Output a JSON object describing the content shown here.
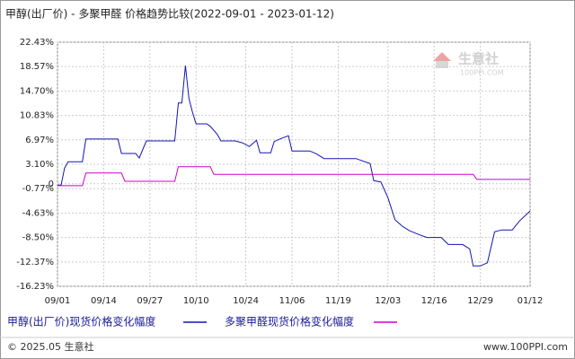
{
  "chart_data": {
    "type": "line",
    "title": "甲醇(出厂价) - 多聚甲醛 价格趋势比较(2022-09-01 - 2023-01-12)",
    "watermark": "生意社",
    "watermark_url": "100PPI.COM",
    "footer_left": "© 2025.05 生意社",
    "footer_right": "www.100PPI.com",
    "xlim": [
      "2022-09-01",
      "2023-01-12"
    ],
    "xticks": [
      {
        "value": "2022-09-01",
        "label": "09/01"
      },
      {
        "value": "2022-09-14",
        "label": "09/14"
      },
      {
        "value": "2022-09-27",
        "label": "09/27"
      },
      {
        "value": "2022-10-10",
        "label": "10/10"
      },
      {
        "value": "2022-10-24",
        "label": "10/24"
      },
      {
        "value": "2022-11-06",
        "label": "11/06"
      },
      {
        "value": "2022-11-19",
        "label": "11/19"
      },
      {
        "value": "2022-12-03",
        "label": "12/03"
      },
      {
        "value": "2022-12-16",
        "label": "12/16"
      },
      {
        "value": "2022-12-29",
        "label": "12/29"
      },
      {
        "value": "2023-01-12",
        "label": "01/12"
      }
    ],
    "ylim": [
      -16.23,
      22.43
    ],
    "yticks": [
      {
        "value": 22.43,
        "label": "22.43%"
      },
      {
        "value": 18.57,
        "label": "18.57%"
      },
      {
        "value": 14.7,
        "label": "14.70%"
      },
      {
        "value": 10.83,
        "label": "10.83%"
      },
      {
        "value": 6.97,
        "label": "6.97%"
      },
      {
        "value": 3.1,
        "label": "3.10%"
      },
      0,
      {
        "value": -0.77,
        "label": "-0.77%"
      },
      {
        "value": -4.63,
        "label": "-4.63%"
      },
      {
        "value": -8.5,
        "label": "-8.50%"
      },
      {
        "value": -12.37,
        "label": "-12.37%"
      },
      {
        "value": -16.23,
        "label": "-16.23%"
      }
    ],
    "grid": true,
    "series": [
      {
        "name": "甲醇(出厂价)现货价格变化幅度",
        "color": "#1414b4",
        "x": [
          "2022-09-01",
          "2022-09-02",
          "2022-09-03",
          "2022-09-04",
          "2022-09-08",
          "2022-09-09",
          "2022-09-18",
          "2022-09-19",
          "2022-09-23",
          "2022-09-24",
          "2022-09-26",
          "2022-10-04",
          "2022-10-05",
          "2022-10-06",
          "2022-10-07",
          "2022-10-08",
          "2022-10-09",
          "2022-10-10",
          "2022-10-13",
          "2022-10-14",
          "2022-10-16",
          "2022-10-17",
          "2022-10-21",
          "2022-10-23",
          "2022-10-25",
          "2022-10-27",
          "2022-10-28",
          "2022-10-31",
          "2022-11-01",
          "2022-11-03",
          "2022-11-05",
          "2022-11-06",
          "2022-11-11",
          "2022-11-13",
          "2022-11-15",
          "2022-11-24",
          "2022-11-28",
          "2022-11-29",
          "2022-12-01",
          "2022-12-03",
          "2022-12-05",
          "2022-12-07",
          "2022-12-09",
          "2022-12-12",
          "2022-12-14",
          "2022-12-18",
          "2022-12-20",
          "2022-12-24",
          "2022-12-26",
          "2022-12-27",
          "2022-12-29",
          "2022-12-31",
          "2023-01-02",
          "2023-01-04",
          "2023-01-07",
          "2023-01-09",
          "2023-01-12"
        ],
        "values": [
          -0.2,
          -0.2,
          2.5,
          3.5,
          3.5,
          7.1,
          7.1,
          4.8,
          4.8,
          4.1,
          6.8,
          6.8,
          12.8,
          12.8,
          18.7,
          13.5,
          11.3,
          9.5,
          9.5,
          9.1,
          7.8,
          6.8,
          6.8,
          6.5,
          5.9,
          6.9,
          4.9,
          4.9,
          6.7,
          7.2,
          7.6,
          5.2,
          5.2,
          4.7,
          4.0,
          4.0,
          3.2,
          0.5,
          0.3,
          -2.2,
          -5.7,
          -6.7,
          -7.4,
          -8.1,
          -8.5,
          -8.5,
          -9.6,
          -9.6,
          -10.3,
          -13.0,
          -13.0,
          -12.5,
          -7.6,
          -7.3,
          -7.3,
          -5.9,
          -4.3
        ]
      },
      {
        "name": "多聚甲醛现货价格变化幅度",
        "color": "#cc00cc",
        "x": [
          "2022-09-01",
          "2022-09-08",
          "2022-09-09",
          "2022-09-19",
          "2022-09-20",
          "2022-10-04",
          "2022-10-05",
          "2022-10-14",
          "2022-10-15",
          "2022-12-27",
          "2022-12-28",
          "2023-01-12"
        ],
        "values": [
          -0.3,
          -0.3,
          1.7,
          1.7,
          0.4,
          0.4,
          2.7,
          2.7,
          1.5,
          1.5,
          0.7,
          0.7
        ]
      }
    ]
  }
}
